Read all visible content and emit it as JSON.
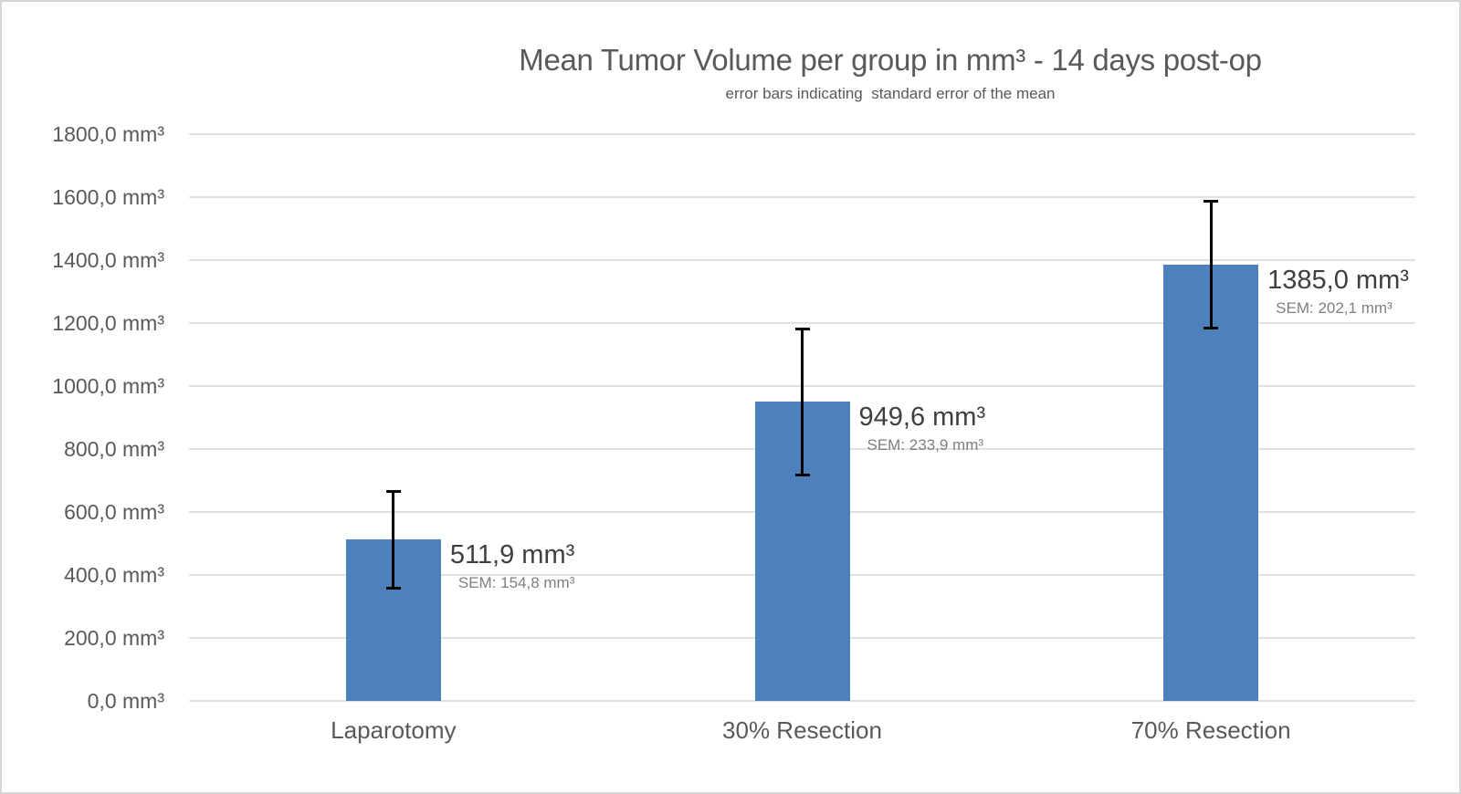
{
  "chart_data": {
    "type": "bar",
    "title": "Mean Tumor Volume per group in mm³ - 14 days post-op",
    "subtitle": "error bars indicating  standard error of the mean",
    "categories": [
      "Laparotomy",
      "30% Resection",
      "70% Resection"
    ],
    "values": [
      511.9,
      949.6,
      1385.0
    ],
    "sem_values": [
      154.8,
      233.9,
      202.1
    ],
    "data_labels": [
      {
        "value_label": "511,9 mm³",
        "sem_label": "SEM: 154,8 mm³"
      },
      {
        "value_label": "949,6 mm³",
        "sem_label": "SEM: 233,9 mm³"
      },
      {
        "value_label": "1385,0 mm³",
        "sem_label": "SEM: 202,1 mm³"
      }
    ],
    "y_ticks": [
      {
        "value": 0,
        "label": "0,0 mm³"
      },
      {
        "value": 200,
        "label": "200,0 mm³"
      },
      {
        "value": 400,
        "label": "400,0 mm³"
      },
      {
        "value": 600,
        "label": "600,0 mm³"
      },
      {
        "value": 800,
        "label": "800,0 mm³"
      },
      {
        "value": 1000,
        "label": "1000,0 mm³"
      },
      {
        "value": 1200,
        "label": "1200,0 mm³"
      },
      {
        "value": 1400,
        "label": "1400,0 mm³"
      },
      {
        "value": 1600,
        "label": "1600,0 mm³"
      },
      {
        "value": 1800,
        "label": "1800,0 mm³"
      }
    ],
    "xlabel": "",
    "ylabel": "",
    "ylim": [
      0,
      1800
    ],
    "grid": true,
    "legend": "none",
    "bar_color": "#4e80bc",
    "error_bar_color": "#000000"
  }
}
